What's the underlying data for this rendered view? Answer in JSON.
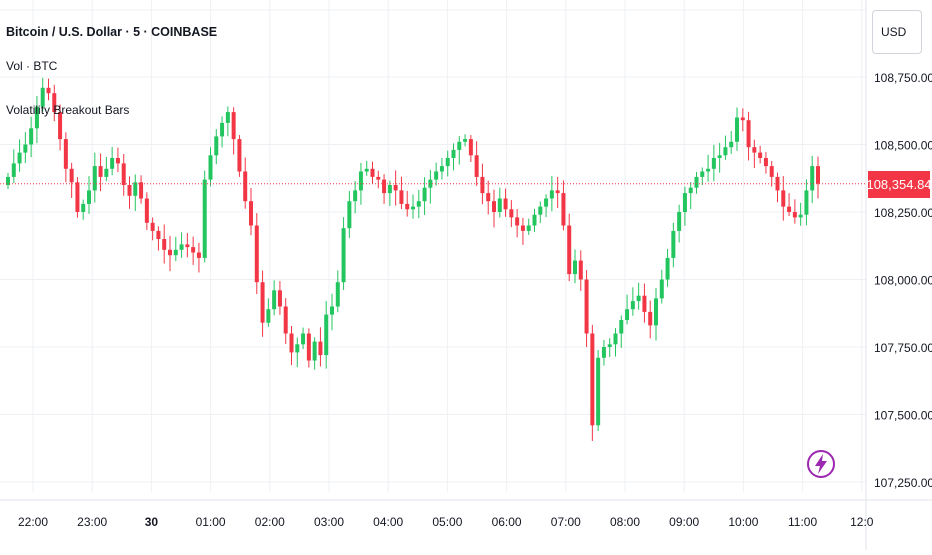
{
  "legend": {
    "title": "Bitcoin / U.S. Dollar · 5 · COINBASE",
    "volume": "Vol · BTC",
    "indicator": "Volatility Breakout Bars"
  },
  "currency": "USD",
  "last_price_label": "108,354.84",
  "colors": {
    "up": "#26a69a",
    "up_bright": "#22c55e",
    "down": "#f23645",
    "grid": "#eef0f3",
    "price_line": "#f23645",
    "logo": "#9c27b0"
  },
  "icons": {
    "logo": "lightning-icon"
  },
  "chart_data": {
    "type": "candlestick",
    "symbol": "Bitcoin / U.S. Dollar",
    "interval": "5",
    "exchange": "COINBASE",
    "xlabels": [
      "22:00",
      "23:00",
      "30",
      "01:00",
      "02:00",
      "03:00",
      "04:00",
      "05:00",
      "06:00",
      "07:00",
      "08:00",
      "09:00",
      "10:00",
      "11:00",
      "12:0"
    ],
    "bold_xlabels": [
      "30"
    ],
    "yticks": [
      108750,
      108500,
      108250,
      108000,
      107750,
      107500,
      107250
    ],
    "ytick_labels": [
      "108,750.00",
      "108,500.00",
      "108,250.00",
      "108,000.00",
      "107,750.00",
      "107,500.00",
      "107,250.00"
    ],
    "ylim": [
      107200,
      108900
    ],
    "last_price": 108354.84,
    "grid": true,
    "candles_close_path": [
      108380,
      108430,
      108470,
      108500,
      108560,
      108640,
      108710,
      108690,
      108620,
      108520,
      108410,
      108360,
      108250,
      108280,
      108330,
      108420,
      108380,
      108410,
      108450,
      108430,
      108350,
      108310,
      108360,
      108300,
      108210,
      108180,
      108150,
      108110,
      108090,
      108110,
      108130,
      108120,
      108100,
      108080,
      108370,
      108460,
      108530,
      108580,
      108620,
      108520,
      108400,
      108290,
      108200,
      107990,
      107840,
      107890,
      107960,
      107900,
      107800,
      107730,
      107760,
      107800,
      107700,
      107770,
      107720,
      107870,
      107900,
      107990,
      108190,
      108290,
      108330,
      108400,
      108410,
      108380,
      108370,
      108320,
      108350,
      108330,
      108280,
      108260,
      108270,
      108290,
      108340,
      108370,
      108400,
      108420,
      108450,
      108480,
      108510,
      108520,
      108460,
      108380,
      108320,
      108290,
      108250,
      108300,
      108260,
      108230,
      108200,
      108180,
      108200,
      108240,
      108270,
      108300,
      108330,
      108320,
      108200,
      108020,
      108070,
      108000,
      107800,
      107460,
      107710,
      107750,
      107760,
      107800,
      107850,
      107890,
      107920,
      107940,
      107880,
      107830,
      107930,
      108000,
      108080,
      108180,
      108250,
      108320,
      108340,
      108380,
      108400,
      108410,
      108450,
      108460,
      108490,
      108510,
      108600,
      108590,
      108490,
      108470,
      108450,
      108420,
      108380,
      108330,
      108270,
      108250,
      108230,
      108240,
      108330,
      108420,
      108354.84
    ]
  }
}
